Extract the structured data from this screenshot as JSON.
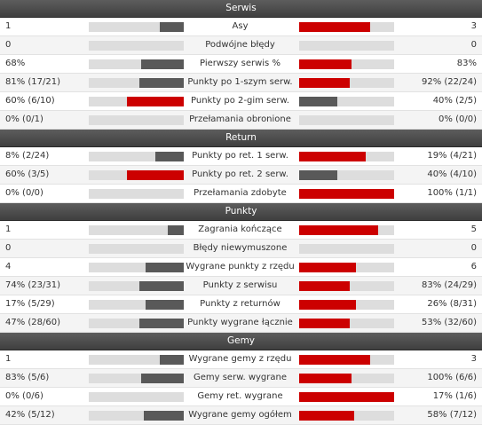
{
  "colors": {
    "winner": "#cc0000",
    "loser": "#595959",
    "track": "#dddddd",
    "header": "#4a4a4a"
  },
  "sections": [
    {
      "title": "Serwis",
      "rows": [
        {
          "label": "Asy",
          "left": "1",
          "right": "3",
          "left_frac": 0.25,
          "right_frac": 0.75,
          "lead": "right"
        },
        {
          "label": "Podwójne błędy",
          "left": "0",
          "right": "0",
          "left_frac": 0,
          "right_frac": 0,
          "lead": "none"
        },
        {
          "label": "Pierwszy serwis %",
          "left": "68%",
          "right": "83%",
          "left_frac": 0.45,
          "right_frac": 0.55,
          "lead": "right"
        },
        {
          "label": "Punkty po 1-szym serw.",
          "left": "81% (17/21)",
          "right": "92% (22/24)",
          "left_frac": 0.47,
          "right_frac": 0.53,
          "lead": "right"
        },
        {
          "label": "Punkty po 2-gim serw.",
          "left": "60% (6/10)",
          "right": "40% (2/5)",
          "left_frac": 0.6,
          "right_frac": 0.4,
          "lead": "left"
        },
        {
          "label": "Przełamania obronione",
          "left": "0% (0/1)",
          "right": "0% (0/0)",
          "left_frac": 0,
          "right_frac": 0,
          "lead": "none"
        }
      ]
    },
    {
      "title": "Return",
      "rows": [
        {
          "label": "Punkty po ret. 1 serw.",
          "left": "8% (2/24)",
          "right": "19% (4/21)",
          "left_frac": 0.3,
          "right_frac": 0.7,
          "lead": "right"
        },
        {
          "label": "Punkty po ret. 2 serw.",
          "left": "60% (3/5)",
          "right": "40% (4/10)",
          "left_frac": 0.6,
          "right_frac": 0.4,
          "lead": "left"
        },
        {
          "label": "Przełamania zdobyte",
          "left": "0% (0/0)",
          "right": "100% (1/1)",
          "left_frac": 0,
          "right_frac": 1,
          "lead": "right"
        }
      ]
    },
    {
      "title": "Punkty",
      "rows": [
        {
          "label": "Zagrania kończące",
          "left": "1",
          "right": "5",
          "left_frac": 0.17,
          "right_frac": 0.83,
          "lead": "right"
        },
        {
          "label": "Błędy niewymuszone",
          "left": "0",
          "right": "0",
          "left_frac": 0,
          "right_frac": 0,
          "lead": "none"
        },
        {
          "label": "Wygrane punkty z rzędu",
          "left": "4",
          "right": "6",
          "left_frac": 0.4,
          "right_frac": 0.6,
          "lead": "right"
        },
        {
          "label": "Punkty z serwisu",
          "left": "74% (23/31)",
          "right": "83% (24/29)",
          "left_frac": 0.47,
          "right_frac": 0.53,
          "lead": "right"
        },
        {
          "label": "Punkty z returnów",
          "left": "17% (5/29)",
          "right": "26% (8/31)",
          "left_frac": 0.4,
          "right_frac": 0.6,
          "lead": "right"
        },
        {
          "label": "Punkty wygrane łącznie",
          "left": "47% (28/60)",
          "right": "53% (32/60)",
          "left_frac": 0.47,
          "right_frac": 0.53,
          "lead": "right"
        }
      ]
    },
    {
      "title": "Gemy",
      "rows": [
        {
          "label": "Wygrane gemy z rzędu",
          "left": "1",
          "right": "3",
          "left_frac": 0.25,
          "right_frac": 0.75,
          "lead": "right"
        },
        {
          "label": "Gemy serw. wygrane",
          "left": "83% (5/6)",
          "right": "100% (6/6)",
          "left_frac": 0.45,
          "right_frac": 0.55,
          "lead": "right"
        },
        {
          "label": "Gemy ret. wygrane",
          "left": "0% (0/6)",
          "right": "17% (1/6)",
          "left_frac": 0,
          "right_frac": 1,
          "lead": "right"
        },
        {
          "label": "Wygrane gemy ogółem",
          "left": "42% (5/12)",
          "right": "58% (7/12)",
          "left_frac": 0.42,
          "right_frac": 0.58,
          "lead": "right"
        }
      ]
    }
  ]
}
